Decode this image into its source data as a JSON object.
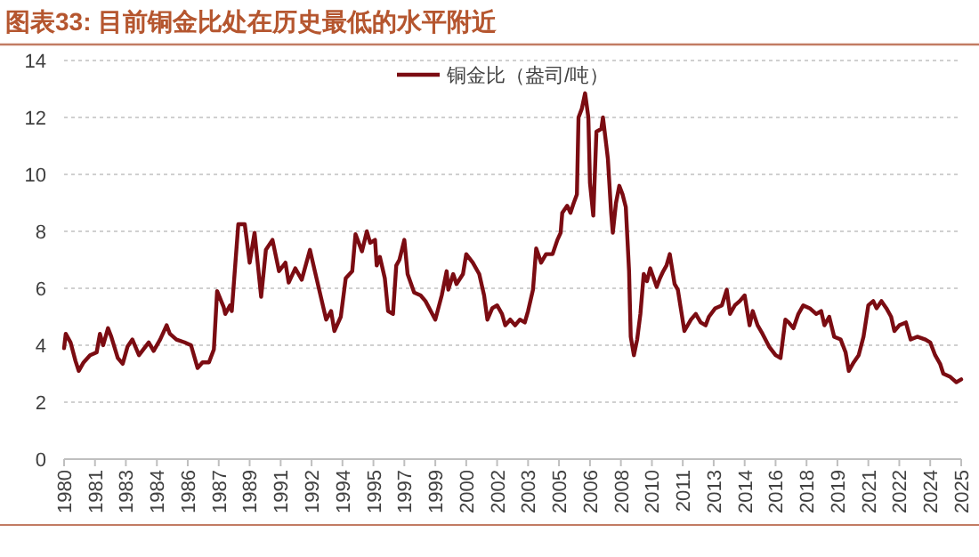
{
  "chart_data": {
    "type": "line",
    "title": "图表33:  目前铜金比处在历史最低的水平附近",
    "legend": "top",
    "grid": "y",
    "line_style": "solid",
    "marker": "none",
    "xlim": [
      "1980-01",
      "2025-12"
    ],
    "ylim": [
      0,
      14
    ],
    "yticks": [
      0,
      2,
      4,
      6,
      8,
      10,
      12,
      14
    ],
    "xticks": [
      {
        "value": "1980-01",
        "label": "1980"
      },
      {
        "value": "1981-08",
        "label": "1981"
      },
      {
        "value": "1983-03",
        "label": "1983"
      },
      {
        "value": "1984-10",
        "label": "1984"
      },
      {
        "value": "1986-05",
        "label": "1986"
      },
      {
        "value": "1987-12",
        "label": "1987"
      },
      {
        "value": "1989-07",
        "label": "1989"
      },
      {
        "value": "1991-02",
        "label": "1991"
      },
      {
        "value": "1992-09",
        "label": "1992"
      },
      {
        "value": "1994-04",
        "label": "1994"
      },
      {
        "value": "1995-11",
        "label": "1995"
      },
      {
        "value": "1997-06",
        "label": "1997"
      },
      {
        "value": "1999-01",
        "label": "1999"
      },
      {
        "value": "2000-08",
        "label": "2000"
      },
      {
        "value": "2002-03",
        "label": "2002"
      },
      {
        "value": "2003-10",
        "label": "2003"
      },
      {
        "value": "2005-05",
        "label": "2005"
      },
      {
        "value": "2006-12",
        "label": "2006"
      },
      {
        "value": "2008-07",
        "label": "2008"
      },
      {
        "value": "2010-02",
        "label": "2010"
      },
      {
        "value": "2011-09",
        "label": "2011"
      },
      {
        "value": "2013-04",
        "label": "2013"
      },
      {
        "value": "2014-11",
        "label": "2014"
      },
      {
        "value": "2016-06",
        "label": "2016"
      },
      {
        "value": "2018-01",
        "label": "2018"
      },
      {
        "value": "2019-08",
        "label": "2019"
      },
      {
        "value": "2021-03",
        "label": "2021"
      },
      {
        "value": "2022-10",
        "label": "2022"
      },
      {
        "value": "2024-05",
        "label": "2024"
      },
      {
        "value": "2025-12",
        "label": "2025"
      }
    ],
    "series": [
      {
        "name": "铜金比（盎司/吨）",
        "color": "#7b0c12",
        "x": [
          "1980-01",
          "1980-02",
          "1980-05",
          "1980-08",
          "1980-10",
          "1981-01",
          "1981-05",
          "1981-09",
          "1981-11",
          "1982-01",
          "1982-04",
          "1982-06",
          "1982-10",
          "1983-01",
          "1983-04",
          "1983-07",
          "1983-11",
          "1984-05",
          "1984-08",
          "1984-12",
          "1985-04",
          "1985-06",
          "1985-10",
          "1986-03",
          "1986-07",
          "1986-11",
          "1987-02",
          "1987-06",
          "1987-09",
          "1987-11",
          "1988-03",
          "1988-04",
          "1988-07",
          "1988-08",
          "1988-12",
          "1989-04",
          "1989-07",
          "1989-10",
          "1990-02",
          "1990-05",
          "1990-09",
          "1991-01",
          "1991-05",
          "1991-07",
          "1991-11",
          "1992-03",
          "1992-08",
          "1992-11",
          "1993-06",
          "1993-09",
          "1993-11",
          "1994-03",
          "1994-06",
          "1994-10",
          "1994-12",
          "1995-04",
          "1995-07",
          "1995-09",
          "1995-12",
          "1996-01",
          "1996-03",
          "1996-06",
          "1996-08",
          "1996-11",
          "1997-01",
          "1997-03",
          "1997-06",
          "1997-08",
          "1997-12",
          "1998-04",
          "1998-07",
          "1999-01",
          "1999-05",
          "1999-08",
          "1999-09",
          "1999-12",
          "2000-02",
          "2000-06",
          "2000-08",
          "2000-12",
          "2001-04",
          "2001-07",
          "2001-09",
          "2001-12",
          "2002-03",
          "2002-06",
          "2002-08",
          "2002-11",
          "2003-02",
          "2003-05",
          "2003-08",
          "2003-10",
          "2004-01",
          "2004-03",
          "2004-06",
          "2004-09",
          "2005-01",
          "2005-04",
          "2005-06",
          "2005-07",
          "2005-10",
          "2005-12",
          "2006-02",
          "2006-04",
          "2006-05",
          "2006-07",
          "2006-09",
          "2006-11",
          "2006-12",
          "2007-02",
          "2007-04",
          "2007-07",
          "2007-08",
          "2007-10",
          "2007-11",
          "2008-01",
          "2008-02",
          "2008-04",
          "2008-06",
          "2008-08",
          "2008-10",
          "2008-12",
          "2009-01",
          "2009-03",
          "2009-05",
          "2009-07",
          "2009-09",
          "2009-11",
          "2010-01",
          "2010-05",
          "2010-07",
          "2010-09",
          "2010-11",
          "2011-01",
          "2011-04",
          "2011-06",
          "2011-10",
          "2012-02",
          "2012-05",
          "2012-08",
          "2012-11",
          "2013-01",
          "2013-05",
          "2013-09",
          "2013-12",
          "2014-02",
          "2014-05",
          "2014-08",
          "2014-11",
          "2015-02",
          "2015-04",
          "2015-07",
          "2015-10",
          "2016-02",
          "2016-06",
          "2016-09",
          "2016-12",
          "2017-02",
          "2017-05",
          "2017-08",
          "2017-11",
          "2018-03",
          "2018-07",
          "2018-10",
          "2018-12",
          "2019-03",
          "2019-06",
          "2019-10",
          "2020-01",
          "2020-03",
          "2020-06",
          "2020-09",
          "2020-12",
          "2021-03",
          "2021-06",
          "2021-08",
          "2021-11",
          "2022-02",
          "2022-05",
          "2022-07",
          "2022-10",
          "2023-02",
          "2023-05",
          "2023-09",
          "2024-02",
          "2024-05",
          "2024-08",
          "2024-11",
          "2025-01",
          "2025-05",
          "2025-09",
          "2025-12"
        ],
        "values": [
          3.9,
          4.4,
          4.1,
          3.45,
          3.1,
          3.4,
          3.65,
          3.75,
          4.4,
          4,
          4.6,
          4.3,
          3.55,
          3.35,
          3.95,
          4.2,
          3.65,
          4.1,
          3.8,
          4.2,
          4.7,
          4.4,
          4.2,
          4.1,
          4,
          3.2,
          3.4,
          3.4,
          3.85,
          5.9,
          5.35,
          5.1,
          5.4,
          5.2,
          8.25,
          8.25,
          6.9,
          7.95,
          5.7,
          7.35,
          7.7,
          6.6,
          6.9,
          6.2,
          6.7,
          6.3,
          7.35,
          6.6,
          4.9,
          5.2,
          4.5,
          5,
          6.35,
          6.6,
          7.9,
          7.3,
          8,
          7.6,
          7.7,
          6.8,
          7.1,
          6.35,
          5.2,
          5.1,
          6.8,
          7,
          7.7,
          6.5,
          5.85,
          5.75,
          5.55,
          4.9,
          5.75,
          6.6,
          5.95,
          6.5,
          6.15,
          6.5,
          7.2,
          6.9,
          6.5,
          5.75,
          4.9,
          5.3,
          5.4,
          5.1,
          4.7,
          4.9,
          4.7,
          4.9,
          4.8,
          5.2,
          5.95,
          7.4,
          6.9,
          7.2,
          7.2,
          7.7,
          7.95,
          8.65,
          8.9,
          8.65,
          9,
          9.3,
          12,
          12.3,
          12.85,
          12,
          9.7,
          8.55,
          11.5,
          11.6,
          12,
          11.05,
          10.55,
          8.65,
          7.95,
          9,
          9.6,
          9.3,
          8.85,
          6.6,
          4.3,
          3.65,
          4.2,
          5.1,
          6.5,
          6.25,
          6.7,
          6.05,
          6.35,
          6.6,
          6.8,
          7.2,
          6.15,
          5.95,
          4.5,
          4.9,
          5.1,
          4.8,
          4.7,
          5,
          5.3,
          5.4,
          5.95,
          5.1,
          5.4,
          5.55,
          5.75,
          4.7,
          5.2,
          4.7,
          4.4,
          3.95,
          3.65,
          3.55,
          4.9,
          4.8,
          4.6,
          5.1,
          5.4,
          5.3,
          5.1,
          5.2,
          4.7,
          5,
          4.3,
          4.2,
          3.75,
          3.1,
          3.4,
          3.65,
          4.3,
          5.4,
          5.55,
          5.3,
          5.55,
          5.3,
          5,
          4.5,
          4.7,
          4.8,
          4.2,
          4.3,
          4.2,
          4.1,
          3.65,
          3.35,
          3,
          2.9,
          2.7,
          2.8
        ]
      }
    ]
  }
}
